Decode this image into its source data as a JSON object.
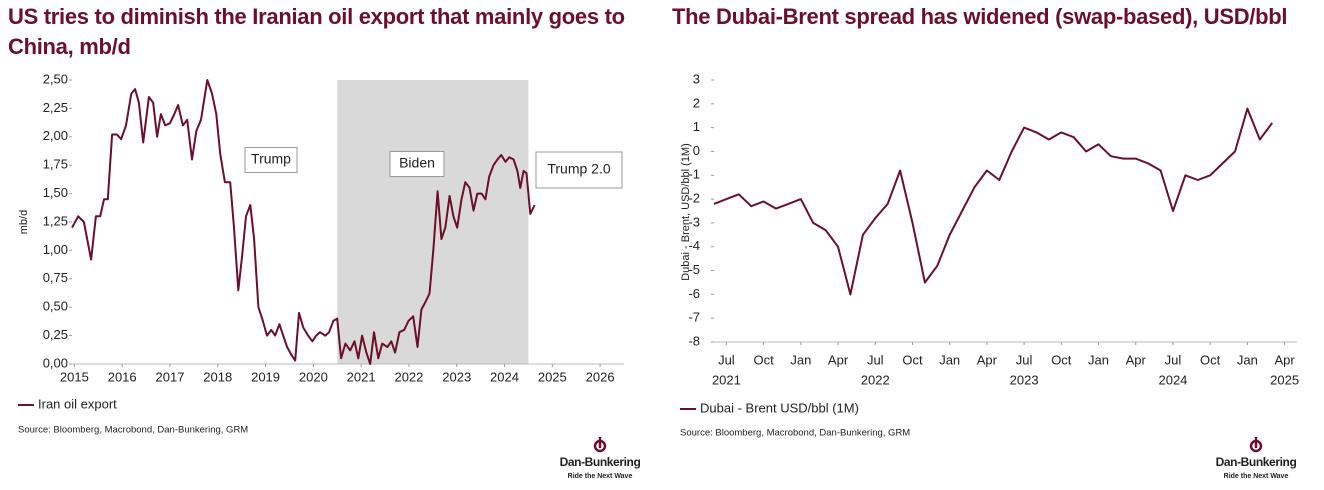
{
  "chart_data": [
    {
      "type": "line",
      "title": "US tries to diminish the Iranian oil export that mainly goes to China, mb/d",
      "ylabel": "mb/d",
      "xlim": [
        2015.45,
        2027
      ],
      "xticks": [
        {
          "value": 2015.5,
          "label": "2015"
        },
        {
          "value": 2016.5,
          "label": "2016"
        },
        {
          "value": 2017.5,
          "label": "2017"
        },
        {
          "value": 2018.5,
          "label": "2018"
        },
        {
          "value": 2019.5,
          "label": "2019"
        },
        {
          "value": 2020.5,
          "label": "2020"
        },
        {
          "value": 2021.5,
          "label": "2021"
        },
        {
          "value": 2022.5,
          "label": "2022"
        },
        {
          "value": 2023.5,
          "label": "2023"
        },
        {
          "value": 2024.5,
          "label": "2024"
        },
        {
          "value": 2025.5,
          "label": "2025"
        },
        {
          "value": 2026.5,
          "label": "2026"
        }
      ],
      "ylim": [
        0,
        2.5
      ],
      "yticks": [
        {
          "value": 0,
          "label": "0,00"
        },
        {
          "value": 0.25,
          "label": "0,25"
        },
        {
          "value": 0.5,
          "label": "0,50"
        },
        {
          "value": 0.75,
          "label": "0,75"
        },
        {
          "value": 1,
          "label": "1,00"
        },
        {
          "value": 1.25,
          "label": "1,25"
        },
        {
          "value": 1.5,
          "label": "1,50"
        },
        {
          "value": 1.75,
          "label": "1,75"
        },
        {
          "value": 2,
          "label": "2,00"
        },
        {
          "value": 2.25,
          "label": "2,25"
        },
        {
          "value": 2.5,
          "label": "2,50"
        }
      ],
      "grid": false,
      "shaded": [
        2021,
        2025
      ],
      "annotations": [
        "Trump",
        "Biden",
        "Trump 2.0"
      ],
      "x": [
        2015.45,
        2015.58,
        2015.7,
        2015.85,
        2015.95,
        2016.04,
        2016.12,
        2016.2,
        2016.29,
        2016.39,
        2016.48,
        2016.58,
        2016.69,
        2016.77,
        2016.85,
        2016.94,
        2017.06,
        2017.15,
        2017.23,
        2017.31,
        2017.4,
        2017.5,
        2017.59,
        2017.67,
        2017.77,
        2017.86,
        2017.96,
        2018.05,
        2018.15,
        2018.28,
        2018.38,
        2018.47,
        2018.55,
        2018.65,
        2018.76,
        2018.84,
        2018.93,
        2019.01,
        2019.09,
        2019.18,
        2019.26,
        2019.35,
        2019.43,
        2019.53,
        2019.62,
        2019.7,
        2019.79,
        2019.87,
        2019.95,
        2020.04,
        2020.12,
        2020.2,
        2020.29,
        2020.39,
        2020.48,
        2020.56,
        2020.64,
        2020.75,
        2020.83,
        2020.92,
        2021.0,
        2021.08,
        2021.17,
        2021.27,
        2021.36,
        2021.44,
        2021.52,
        2021.61,
        2021.69,
        2021.77,
        2021.86,
        2021.94,
        2022.05,
        2022.13,
        2022.21,
        2022.3,
        2022.4,
        2022.49,
        2022.59,
        2022.68,
        2022.76,
        2022.85,
        2022.93,
        2023.01,
        2023.1,
        2023.18,
        2023.26,
        2023.35,
        2023.43,
        2023.51,
        2023.6,
        2023.68,
        2023.77,
        2023.85,
        2023.93,
        2024.02,
        2024.1,
        2024.18,
        2024.27,
        2024.35,
        2024.43,
        2024.52,
        2024.6,
        2024.69,
        2024.77,
        2024.83,
        2024.9,
        2024.96,
        2025.04,
        2025.13
      ],
      "series": [
        {
          "name": "Iran oil export",
          "color": "#6b0f2a",
          "values": [
            1.2,
            1.3,
            1.25,
            0.92,
            1.3,
            1.3,
            1.45,
            1.45,
            2.02,
            2.02,
            1.98,
            2.1,
            2.38,
            2.42,
            2.3,
            1.95,
            2.35,
            2.3,
            2.0,
            2.2,
            2.1,
            2.12,
            2.2,
            2.28,
            2.1,
            2.15,
            1.8,
            2.05,
            2.15,
            2.5,
            2.38,
            2.2,
            1.85,
            1.6,
            1.6,
            1.2,
            0.65,
            0.95,
            1.3,
            1.4,
            1.1,
            0.5,
            0.4,
            0.25,
            0.3,
            0.25,
            0.35,
            0.25,
            0.15,
            0.08,
            0.03,
            0.45,
            0.32,
            0.25,
            0.2,
            0.25,
            0.28,
            0.25,
            0.28,
            0.38,
            0.4,
            0.05,
            0.18,
            0.12,
            0.2,
            0.05,
            0.25,
            0.1,
            0.0,
            0.28,
            0.05,
            0.18,
            0.15,
            0.2,
            0.1,
            0.28,
            0.3,
            0.38,
            0.42,
            0.15,
            0.48,
            0.55,
            0.62,
            1.0,
            1.52,
            1.1,
            1.2,
            1.48,
            1.3,
            1.2,
            1.45,
            1.6,
            1.55,
            1.35,
            1.5,
            1.5,
            1.45,
            1.65,
            1.75,
            1.8,
            1.84,
            1.78,
            1.82,
            1.8,
            1.7,
            1.55,
            1.7,
            1.68,
            1.32,
            1.4
          ]
        }
      ],
      "source": "Source: Bloomberg, Macrobond, Dan-Bunkering, GRM",
      "logo": {
        "name": "Dan-Bunkering",
        "tagline": "Ride the Next Wave"
      }
    },
    {
      "type": "line",
      "title": "The Dubai-Brent spread has widened (swap-based), USD/bbl",
      "ylabel": "Dubai - Brent, USD/bbl (1M)",
      "xlim": [
        "2021-06",
        "2025-05"
      ],
      "xticks": [
        {
          "value": "2021-07",
          "label": "Jul"
        },
        {
          "value": "2021-10",
          "label": "Oct"
        },
        {
          "value": "2022-01",
          "label": "Jan"
        },
        {
          "value": "2022-04",
          "label": "Apr"
        },
        {
          "value": "2022-07",
          "label": "Jul"
        },
        {
          "value": "2022-10",
          "label": "Oct"
        },
        {
          "value": "2023-01",
          "label": "Jan"
        },
        {
          "value": "2023-04",
          "label": "Apr"
        },
        {
          "value": "2023-07",
          "label": "Jul"
        },
        {
          "value": "2023-10",
          "label": "Oct"
        },
        {
          "value": "2024-01",
          "label": "Jan"
        },
        {
          "value": "2024-04",
          "label": "Apr"
        },
        {
          "value": "2024-07",
          "label": "Jul"
        },
        {
          "value": "2024-10",
          "label": "Oct"
        },
        {
          "value": "2025-01",
          "label": "Jan"
        },
        {
          "value": "2025-04",
          "label": "Apr"
        }
      ],
      "xtick_years": [
        {
          "value": "2021-07",
          "label": "2021"
        },
        {
          "value": "2022-07",
          "label": "2022"
        },
        {
          "value": "2023-07",
          "label": "2023"
        },
        {
          "value": "2024-07",
          "label": "2024"
        },
        {
          "value": "2025-04",
          "label": "2025"
        }
      ],
      "ylim": [
        -8,
        3
      ],
      "yticks": [
        -8,
        -7,
        -6,
        -5,
        -4,
        -3,
        -2,
        -1,
        0,
        1,
        2,
        3
      ],
      "grid": false,
      "x": [
        "2021-06",
        "2021-07",
        "2021-08",
        "2021-09",
        "2021-10",
        "2021-11",
        "2021-12",
        "2022-01",
        "2022-02",
        "2022-03",
        "2022-04",
        "2022-05",
        "2022-06",
        "2022-07",
        "2022-08",
        "2022-09",
        "2022-10",
        "2022-11",
        "2022-12",
        "2023-01",
        "2023-02",
        "2023-03",
        "2023-04",
        "2023-05",
        "2023-06",
        "2023-07",
        "2023-08",
        "2023-09",
        "2023-10",
        "2023-11",
        "2023-12",
        "2024-01",
        "2024-02",
        "2024-03",
        "2024-04",
        "2024-05",
        "2024-06",
        "2024-07",
        "2024-08",
        "2024-09",
        "2024-10",
        "2024-11",
        "2024-12",
        "2025-01",
        "2025-02",
        "2025-03"
      ],
      "series": [
        {
          "name": "Dubai - Brent USD/bbl (1M)",
          "color": "#6b0f2a",
          "values": [
            -2.2,
            -2.0,
            -1.8,
            -2.3,
            -2.1,
            -2.4,
            -2.2,
            -2.0,
            -3.0,
            -3.3,
            -4.0,
            -6.0,
            -3.5,
            -2.8,
            -2.2,
            -0.8,
            -3.0,
            -5.5,
            -4.8,
            -3.5,
            -2.5,
            -1.5,
            -0.8,
            -1.2,
            0.0,
            1.0,
            0.8,
            0.5,
            0.8,
            0.6,
            0.0,
            0.3,
            -0.2,
            -0.3,
            -0.3,
            -0.5,
            -0.8,
            -2.5,
            -1.0,
            -1.2,
            -1.0,
            -0.5,
            0.0,
            1.8,
            0.5,
            1.2
          ]
        }
      ],
      "source": "Source: Bloomberg, Macrobond, Dan-Bunkering, GRM",
      "logo": {
        "name": "Dan-Bunkering",
        "tagline": "Ride the Next Wave"
      }
    }
  ]
}
